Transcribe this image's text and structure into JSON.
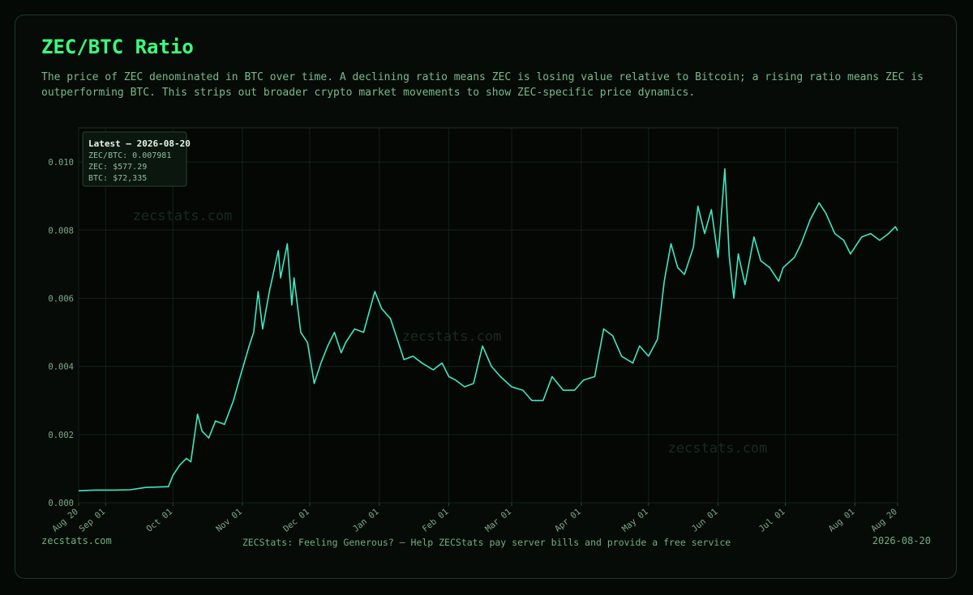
{
  "chart_data": {
    "type": "line",
    "title": "ZEC/BTC Ratio",
    "subtitle": "The price of ZEC denominated in BTC over time. A declining ratio means ZEC is losing value relative to Bitcoin; a rising ratio means ZEC is outperforming BTC. This strips out broader crypto market movements to show ZEC-specific price dynamics.",
    "color": "#3ee8c2",
    "grid": true,
    "x": [
      "2025-08-20",
      "2025-08-27",
      "2025-09-05",
      "2025-09-12",
      "2025-09-19",
      "2025-09-29",
      "2025-10-01",
      "2025-10-04",
      "2025-10-07",
      "2025-10-09",
      "2025-10-12",
      "2025-10-14",
      "2025-10-17",
      "2025-10-20",
      "2025-10-24",
      "2025-10-28",
      "2025-10-31",
      "2025-11-04",
      "2025-11-06",
      "2025-11-08",
      "2025-11-10",
      "2025-11-13",
      "2025-11-17",
      "2025-11-18",
      "2025-11-21",
      "2025-11-23",
      "2025-11-24",
      "2025-11-27",
      "2025-11-30",
      "2025-12-03",
      "2025-12-06",
      "2025-12-09",
      "2025-12-12",
      "2025-12-15",
      "2025-12-17",
      "2025-12-21",
      "2025-12-25",
      "2025-12-30",
      "2026-01-02",
      "2026-01-06",
      "2026-01-09",
      "2026-01-12",
      "2026-01-16",
      "2026-01-20",
      "2026-01-25",
      "2026-01-29",
      "2026-02-01",
      "2026-02-04",
      "2026-02-08",
      "2026-02-12",
      "2026-02-16",
      "2026-02-20",
      "2026-02-24",
      "2026-03-01",
      "2026-03-06",
      "2026-03-10",
      "2026-03-15",
      "2026-03-19",
      "2026-03-24",
      "2026-03-29",
      "2026-04-02",
      "2026-04-07",
      "2026-04-11",
      "2026-04-15",
      "2026-04-19",
      "2026-04-24",
      "2026-04-27",
      "2026-05-01",
      "2026-05-05",
      "2026-05-08",
      "2026-05-11",
      "2026-05-14",
      "2026-05-17",
      "2026-05-21",
      "2026-05-23",
      "2026-05-26",
      "2026-05-29",
      "2026-06-01",
      "2026-06-04",
      "2026-06-06",
      "2026-06-08",
      "2026-06-10",
      "2026-06-13",
      "2026-06-17",
      "2026-06-20",
      "2026-06-24",
      "2026-06-28",
      "2026-06-30",
      "2026-07-05",
      "2026-07-08",
      "2026-07-12",
      "2026-07-16",
      "2026-07-19",
      "2026-07-23",
      "2026-07-27",
      "2026-07-30",
      "2026-08-04",
      "2026-08-08",
      "2026-08-12",
      "2026-08-16",
      "2026-08-19",
      "2026-08-20"
    ],
    "values": [
      0.00035,
      0.00037,
      0.00037,
      0.00038,
      0.00045,
      0.00047,
      0.0008,
      0.0011,
      0.0013,
      0.0012,
      0.0026,
      0.0021,
      0.0019,
      0.0024,
      0.0023,
      0.003,
      0.0037,
      0.0046,
      0.005,
      0.0062,
      0.0051,
      0.0062,
      0.0074,
      0.0066,
      0.0076,
      0.0058,
      0.0066,
      0.005,
      0.0047,
      0.0035,
      0.0041,
      0.0046,
      0.005,
      0.0044,
      0.0047,
      0.0051,
      0.005,
      0.0062,
      0.0057,
      0.0054,
      0.0048,
      0.0042,
      0.0043,
      0.0041,
      0.0039,
      0.0041,
      0.0037,
      0.0036,
      0.0034,
      0.0035,
      0.0046,
      0.004,
      0.0037,
      0.0034,
      0.0033,
      0.003,
      0.003,
      0.0037,
      0.0033,
      0.0033,
      0.0036,
      0.0037,
      0.0051,
      0.0049,
      0.0043,
      0.0041,
      0.0046,
      0.0043,
      0.0048,
      0.0065,
      0.0076,
      0.0069,
      0.0067,
      0.0075,
      0.0087,
      0.0079,
      0.0086,
      0.0072,
      0.0098,
      0.0072,
      0.006,
      0.0073,
      0.0064,
      0.0078,
      0.0071,
      0.0069,
      0.0065,
      0.0069,
      0.0072,
      0.0076,
      0.0083,
      0.0088,
      0.0085,
      0.0079,
      0.0077,
      0.0073,
      0.0078,
      0.0079,
      0.0077,
      0.0079,
      0.0081,
      0.007981
    ],
    "xlim": [
      "2025-08-20",
      "2026-08-20"
    ],
    "xticks": [
      {
        "value": "2025-08-20",
        "label": "Aug 20"
      },
      {
        "value": "2025-09-01",
        "label": "Sep 01"
      },
      {
        "value": "2025-10-01",
        "label": "Oct 01"
      },
      {
        "value": "2025-11-01",
        "label": "Nov 01"
      },
      {
        "value": "2025-12-01",
        "label": "Dec 01"
      },
      {
        "value": "2026-01-01",
        "label": "Jan 01"
      },
      {
        "value": "2026-02-01",
        "label": "Feb 01"
      },
      {
        "value": "2026-03-01",
        "label": "Mar 01"
      },
      {
        "value": "2026-04-01",
        "label": "Apr 01"
      },
      {
        "value": "2026-05-01",
        "label": "May 01"
      },
      {
        "value": "2026-06-01",
        "label": "Jun 01"
      },
      {
        "value": "2026-07-01",
        "label": "Jul 01"
      },
      {
        "value": "2026-08-01",
        "label": "Aug 01"
      },
      {
        "value": "2026-08-20",
        "label": "Aug 20"
      }
    ],
    "ylim": [
      0,
      0.011
    ],
    "yticks": [
      {
        "value": 0,
        "label": "0.000"
      },
      0.002,
      0.004,
      0.006,
      0.008,
      {
        "value": 0.01,
        "label": "0.010"
      }
    ]
  },
  "latest": {
    "heading": "Latest — 2026-08-20",
    "lines": [
      "ZEC/BTC: 0.007981",
      "ZEC: $577.29",
      "BTC: $72,335"
    ]
  },
  "watermarks": [
    "zecstats.com",
    "zecstats.com",
    "zecstats.com"
  ],
  "footer": {
    "left": "zecstats.com",
    "center": "ZECStats: Feeling Generous? — Help ZECStats pay server bills and provide a free service",
    "right": "2026-08-20"
  }
}
